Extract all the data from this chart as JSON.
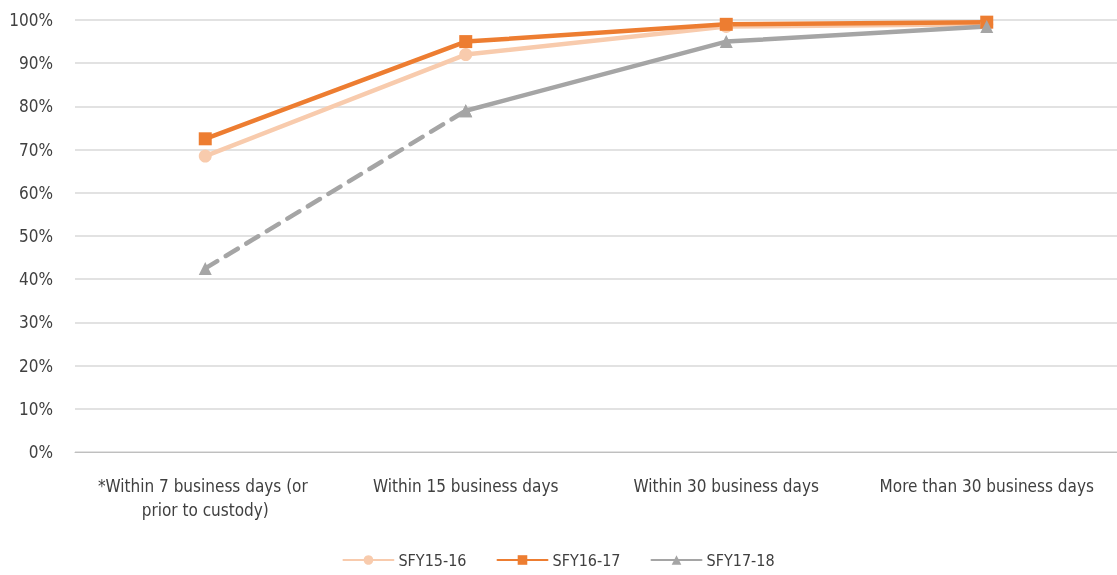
{
  "chart_data": {
    "type": "line",
    "categories": [
      "*Within 7 business days (or prior to custody)",
      "Within 15 business days",
      "Within 30 business days",
      "More than 30 business days"
    ],
    "series": [
      {
        "name": "SFY15-16",
        "color": "#f8cbad",
        "marker": "circle",
        "line_style": "solid",
        "values": [
          68.5,
          92,
          98.5,
          99
        ]
      },
      {
        "name": "SFY16-17",
        "color": "#ed7d31",
        "marker": "square",
        "line_style": "solid",
        "values": [
          72.5,
          95,
          99,
          99.5
        ]
      },
      {
        "name": "SFY17-18",
        "color": "#a5a5a5",
        "marker": "triangle",
        "line_style": "solid",
        "values": [
          null,
          79,
          95,
          98.5
        ]
      },
      {
        "color": "#a5a5a5",
        "marker": "triangle",
        "line_style": "dashed",
        "values": [
          42.5,
          79,
          null,
          null
        ]
      }
    ],
    "ylim": [
      0,
      100
    ],
    "yticks": [
      {
        "value": 0,
        "label": "0%"
      },
      {
        "value": 10,
        "label": "10%"
      },
      {
        "value": 20,
        "label": "20%"
      },
      {
        "value": 30,
        "label": "30%"
      },
      {
        "value": 40,
        "label": "40%"
      },
      {
        "value": 50,
        "label": "50%"
      },
      {
        "value": 60,
        "label": "60%"
      },
      {
        "value": 70,
        "label": "70%"
      },
      {
        "value": 80,
        "label": "80%"
      },
      {
        "value": 90,
        "label": "90%"
      },
      {
        "value": 100,
        "label": "100%"
      }
    ],
    "grid": "y",
    "legend": "bottom"
  }
}
